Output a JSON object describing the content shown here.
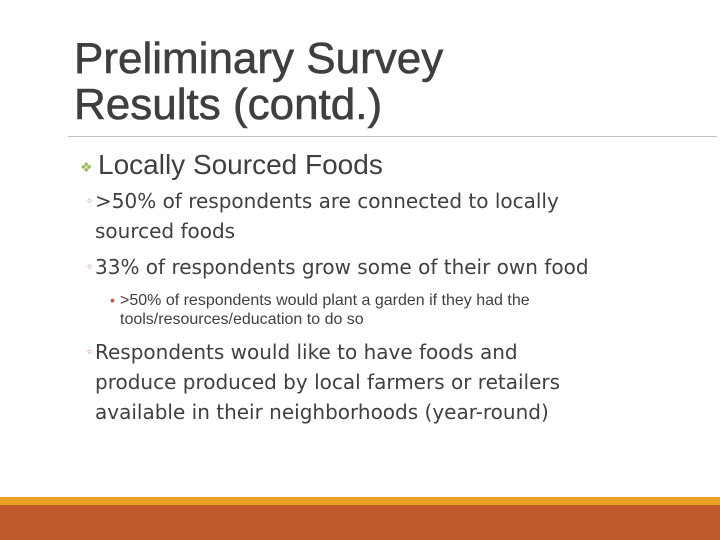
{
  "slide": {
    "title_line1": "Preliminary Survey",
    "title_line2": "Results  (contd.)",
    "heading_icon": "diamond-bullet-icon",
    "heading": "Locally  Sourced Foods",
    "items": [
      {
        "line1": ">50% of respondents are connected to locally",
        "line2": "sourced foods"
      },
      {
        "line1": "33% of respondents grow some of their own food"
      },
      {
        "line1": "Respondents would like to have foods and",
        "line2": "produce produced by local farmers or retailers",
        "line3": "available in their neighborhoods (year-round)"
      }
    ],
    "sub_item": {
      "line1": ">50% of respondents would plant a garden if they had the",
      "line2": "tools/resources/education to do so"
    }
  },
  "colors": {
    "title_text": "#3f3f3f",
    "body_text": "#404040",
    "diamond_bullet": "#9bbb59",
    "ring_bullet": "#c0504d",
    "footer_top": "#e9a223",
    "footer_main": "#c05a2c"
  }
}
